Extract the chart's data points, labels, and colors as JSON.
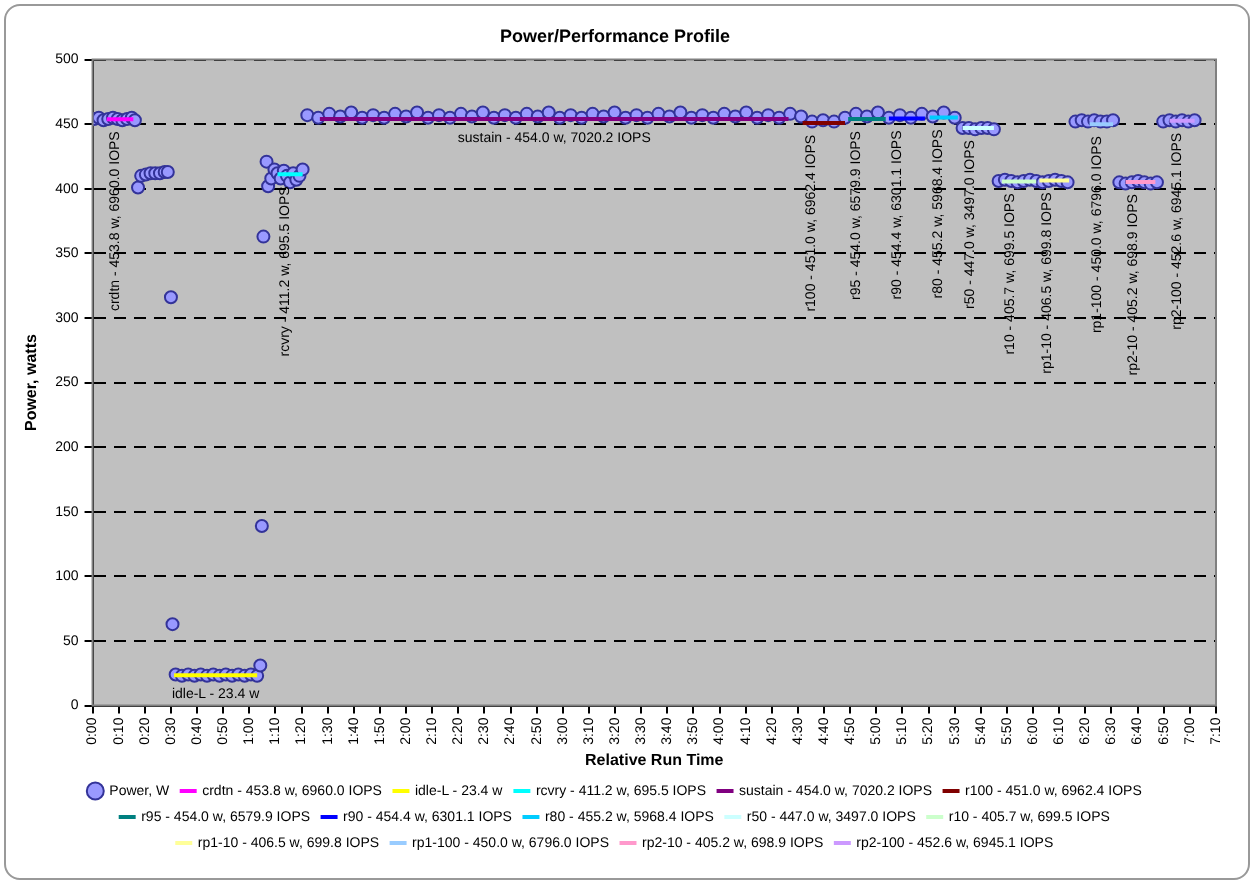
{
  "chart_data": {
    "type": "scatter",
    "title": "Power/Performance Profile",
    "xlabel": "Relative Run Time",
    "ylabel": "Power, watts",
    "xlim": [
      0,
      7.1667
    ],
    "ylim": [
      0,
      500
    ],
    "yticks": [
      0,
      50,
      100,
      150,
      200,
      250,
      300,
      350,
      400,
      450,
      500
    ],
    "xticks": [
      {
        "value": 0,
        "label": "0:00"
      },
      {
        "value": 0.1667,
        "label": "0:10"
      },
      {
        "value": 0.3333,
        "label": "0:20"
      },
      {
        "value": 0.5,
        "label": "0:30"
      },
      {
        "value": 0.6667,
        "label": "0:40"
      },
      {
        "value": 0.8333,
        "label": "0:50"
      },
      {
        "value": 1,
        "label": "1:00"
      },
      {
        "value": 1.1667,
        "label": "1:10"
      },
      {
        "value": 1.3333,
        "label": "1:20"
      },
      {
        "value": 1.5,
        "label": "1:30"
      },
      {
        "value": 1.6667,
        "label": "1:40"
      },
      {
        "value": 1.8333,
        "label": "1:50"
      },
      {
        "value": 2,
        "label": "2:00"
      },
      {
        "value": 2.1667,
        "label": "2:10"
      },
      {
        "value": 2.3333,
        "label": "2:20"
      },
      {
        "value": 2.5,
        "label": "2:30"
      },
      {
        "value": 2.6667,
        "label": "2:40"
      },
      {
        "value": 2.8333,
        "label": "2:50"
      },
      {
        "value": 3,
        "label": "3:00"
      },
      {
        "value": 3.1667,
        "label": "3:10"
      },
      {
        "value": 3.3333,
        "label": "3:20"
      },
      {
        "value": 3.5,
        "label": "3:30"
      },
      {
        "value": 3.6667,
        "label": "3:40"
      },
      {
        "value": 3.8333,
        "label": "3:50"
      },
      {
        "value": 4,
        "label": "4:00"
      },
      {
        "value": 4.1667,
        "label": "4:10"
      },
      {
        "value": 4.3333,
        "label": "4:20"
      },
      {
        "value": 4.5,
        "label": "4:30"
      },
      {
        "value": 4.6667,
        "label": "4:40"
      },
      {
        "value": 4.8333,
        "label": "4:50"
      },
      {
        "value": 5,
        "label": "5:00"
      },
      {
        "value": 5.1667,
        "label": "5:10"
      },
      {
        "value": 5.3333,
        "label": "5:20"
      },
      {
        "value": 5.5,
        "label": "5:30"
      },
      {
        "value": 5.6667,
        "label": "5:40"
      },
      {
        "value": 5.8333,
        "label": "5:50"
      },
      {
        "value": 6,
        "label": "6:00"
      },
      {
        "value": 6.1667,
        "label": "6:10"
      },
      {
        "value": 6.3333,
        "label": "6:20"
      },
      {
        "value": 6.5,
        "label": "6:30"
      },
      {
        "value": 6.6667,
        "label": "6:40"
      },
      {
        "value": 6.8333,
        "label": "6:50"
      },
      {
        "value": 7,
        "label": "7:00"
      },
      {
        "value": 7.1667,
        "label": "7:10"
      }
    ],
    "grid": "y",
    "legend": "bottom",
    "series": [
      {
        "name": "Power, W",
        "type": "scatter",
        "marker": "circle",
        "color": "#333399",
        "x": [
          0.01,
          0.04,
          0.07,
          0.1,
          0.13,
          0.16,
          0.19,
          0.22,
          0.25,
          0.27,
          0.29,
          0.31,
          0.34,
          0.37,
          0.4,
          0.43,
          0.46,
          0.48,
          0.5,
          0.51,
          0.53,
          0.57,
          0.61,
          0.65,
          0.69,
          0.73,
          0.77,
          0.81,
          0.85,
          0.89,
          0.93,
          0.97,
          1.01,
          1.05,
          1.07,
          1.08,
          1.09,
          1.11,
          1.12,
          1.14,
          1.16,
          1.18,
          1.2,
          1.22,
          1.24,
          1.26,
          1.28,
          1.3,
          1.32,
          1.34,
          1.37,
          1.44,
          1.51,
          1.58,
          1.65,
          1.72,
          1.79,
          1.86,
          1.93,
          2.0,
          2.07,
          2.14,
          2.21,
          2.28,
          2.35,
          2.42,
          2.49,
          2.56,
          2.63,
          2.7,
          2.77,
          2.84,
          2.91,
          2.98,
          3.05,
          3.12,
          3.19,
          3.26,
          3.33,
          3.4,
          3.47,
          3.54,
          3.61,
          3.68,
          3.75,
          3.82,
          3.89,
          3.96,
          4.03,
          4.1,
          4.17,
          4.24,
          4.31,
          4.38,
          4.45,
          4.52,
          4.59,
          4.66,
          4.73,
          4.8,
          4.87,
          4.94,
          5.01,
          5.08,
          5.15,
          5.22,
          5.29,
          5.36,
          5.43,
          5.5,
          5.55,
          5.59,
          5.63,
          5.67,
          5.71,
          5.75,
          5.78,
          5.82,
          5.86,
          5.9,
          5.94,
          5.98,
          6.02,
          6.06,
          6.1,
          6.14,
          6.18,
          6.22,
          6.27,
          6.31,
          6.35,
          6.39,
          6.43,
          6.47,
          6.51,
          6.55,
          6.59,
          6.63,
          6.67,
          6.71,
          6.75,
          6.79,
          6.83,
          6.87,
          6.91,
          6.95,
          6.99,
          7.03
        ],
        "values": [
          454,
          455,
          453,
          454,
          455,
          454,
          453,
          454,
          455,
          453,
          401,
          410,
          411,
          412,
          412,
          412,
          413,
          413,
          316,
          63,
          24,
          23,
          24,
          23,
          24,
          23,
          24,
          23,
          24,
          23,
          24,
          23,
          24,
          23,
          31,
          139,
          363,
          421,
          402,
          408,
          415,
          412,
          408,
          414,
          410,
          405,
          412,
          407,
          410,
          415,
          457,
          455,
          458,
          456,
          459,
          455,
          457,
          455,
          458,
          456,
          459,
          455,
          457,
          455,
          458,
          456,
          459,
          455,
          457,
          455,
          458,
          456,
          459,
          455,
          457,
          455,
          458,
          456,
          459,
          455,
          457,
          455,
          458,
          456,
          459,
          455,
          457,
          455,
          458,
          456,
          459,
          455,
          457,
          455,
          458,
          456,
          452,
          453,
          452,
          455,
          458,
          456,
          459,
          455,
          457,
          455,
          458,
          456,
          459,
          455,
          447,
          447,
          446,
          447,
          447,
          446,
          406,
          407,
          406,
          405,
          406,
          407,
          406,
          405,
          406,
          407,
          406,
          405,
          452,
          453,
          452,
          453,
          452,
          452,
          453,
          405,
          404,
          405,
          406,
          405,
          404,
          405,
          452,
          453,
          452,
          453,
          452,
          453
        ]
      },
      {
        "name": "crdtn - 453.8 w, 6960.0 IOPS",
        "type": "line",
        "color": "#ff00ff",
        "x": [
          0.09,
          0.26
        ],
        "values": [
          453.8,
          453.8
        ]
      },
      {
        "name": "idle-L - 23.4 w",
        "type": "line",
        "color": "#ffff00",
        "x": [
          0.52,
          1.05
        ],
        "values": [
          23.4,
          23.4
        ]
      },
      {
        "name": "rcvry - 411.2 w, 695.5 IOPS",
        "type": "line",
        "color": "#00ffff",
        "x": [
          1.18,
          1.34
        ],
        "values": [
          411.2,
          411.2
        ]
      },
      {
        "name": "sustain - 454.0 w, 7020.2 IOPS",
        "type": "line",
        "color": "#800080",
        "x": [
          1.45,
          4.44
        ],
        "values": [
          454.0,
          454.0
        ]
      },
      {
        "name": "r100 - 451.0 w, 6962.4 IOPS",
        "type": "line",
        "color": "#800000",
        "x": [
          4.53,
          4.8
        ],
        "values": [
          451.0,
          451.0
        ]
      },
      {
        "name": "r95 - 454.0 w, 6579.9 IOPS",
        "type": "line",
        "color": "#008080",
        "x": [
          4.82,
          5.06
        ],
        "values": [
          454.0,
          454.0
        ]
      },
      {
        "name": "r90 - 454.4 w, 6301.1 IOPS",
        "type": "line",
        "color": "#0000ff",
        "x": [
          5.08,
          5.31
        ],
        "values": [
          454.4,
          454.4
        ]
      },
      {
        "name": "r80 - 455.2 w, 5968.4 IOPS",
        "type": "line",
        "color": "#00ccff",
        "x": [
          5.34,
          5.52
        ],
        "values": [
          455.2,
          455.2
        ]
      },
      {
        "name": "r50 - 447.0 w, 3497.0 IOPS",
        "type": "line",
        "color": "#ccffff",
        "x": [
          5.55,
          5.75
        ],
        "values": [
          447.0,
          447.0
        ]
      },
      {
        "name": "r10 - 405.7 w, 699.5 IOPS",
        "type": "line",
        "color": "#ccffcc",
        "x": [
          5.8,
          6.02
        ],
        "values": [
          405.7,
          405.7
        ]
      },
      {
        "name": "rp1-10 - 406.5 w, 699.8 IOPS",
        "type": "line",
        "color": "#ffff99",
        "x": [
          6.04,
          6.23
        ],
        "values": [
          406.5,
          406.5
        ]
      },
      {
        "name": "rp1-100 - 450.0 w, 6796.0 IOPS",
        "type": "line",
        "color": "#99ccff",
        "x": [
          6.36,
          6.51
        ],
        "values": [
          450.0,
          450.0
        ]
      },
      {
        "name": "rp2-10 - 405.2 w, 698.9 IOPS",
        "type": "line",
        "color": "#ff99cc",
        "x": [
          6.59,
          6.78
        ],
        "values": [
          405.2,
          405.2
        ]
      },
      {
        "name": "rp2-100 - 452.6 w, 6945.1 IOPS",
        "type": "line",
        "color": "#cc99ff",
        "x": [
          6.87,
          7.03
        ],
        "values": [
          452.6,
          452.6
        ]
      }
    ]
  }
}
